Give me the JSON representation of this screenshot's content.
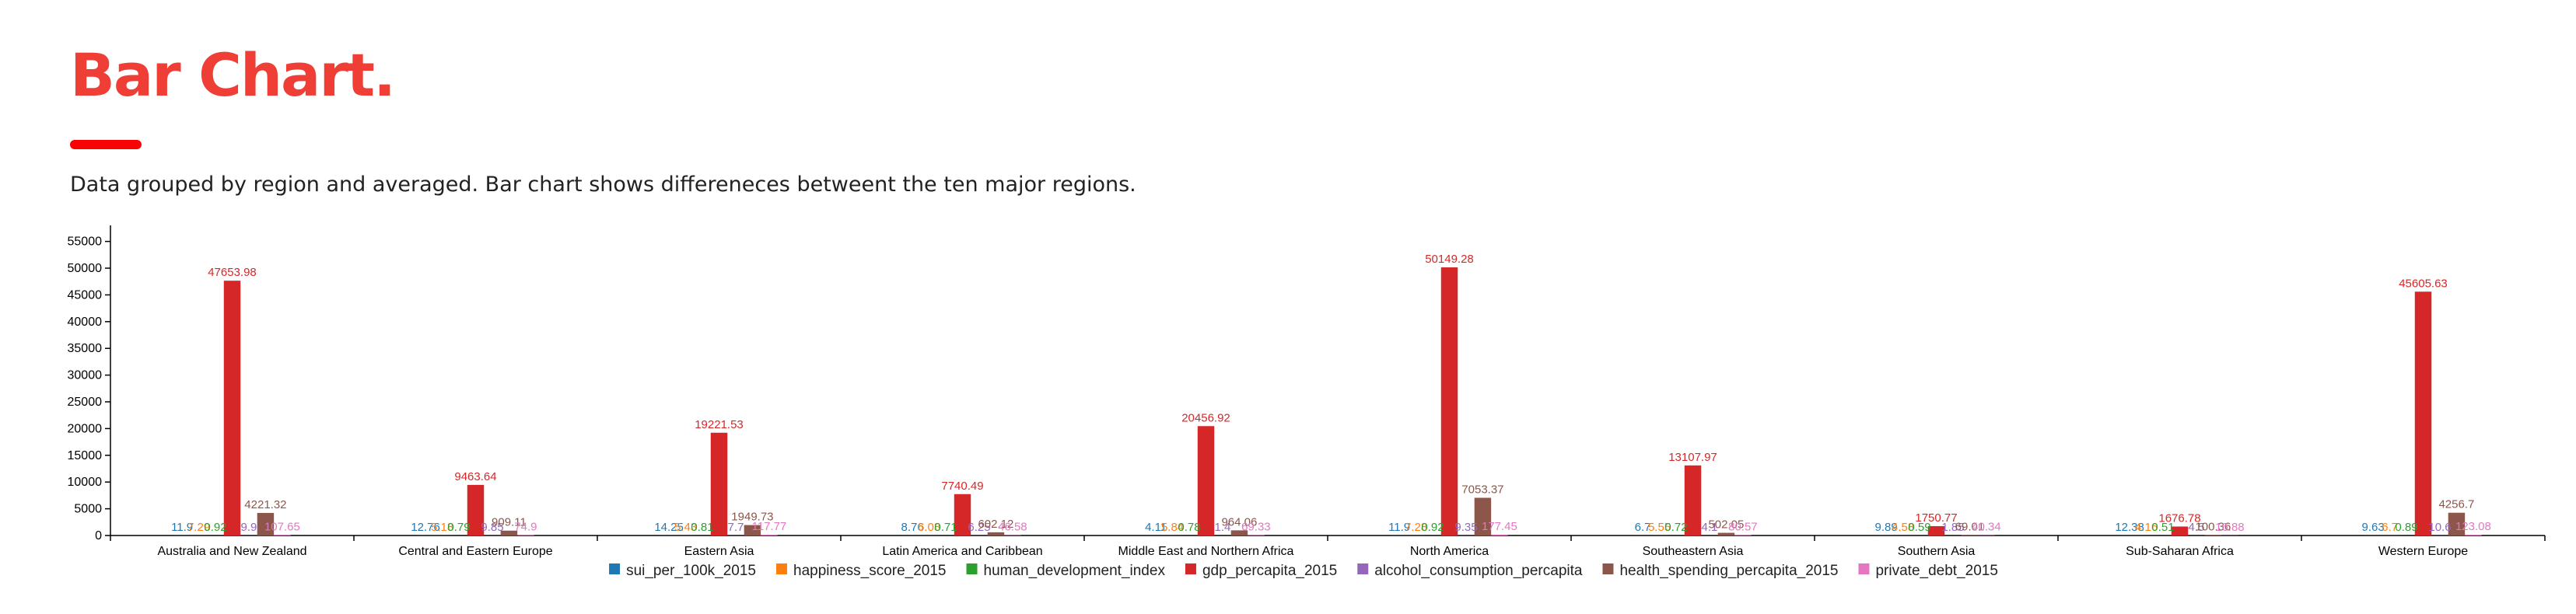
{
  "header": {
    "title": "Bar Chart.",
    "subtitle": "Data grouped by region and averaged. Bar chart shows differeneces betweent the ten major regions."
  },
  "colors": {
    "title": "#ef3e36",
    "underline": "#f80404"
  },
  "chart_data": {
    "type": "bar",
    "categories": [
      "Australia and New Zealand",
      "Central and Eastern Europe",
      "Eastern Asia",
      "Latin America and Caribbean",
      "Middle East and Northern Africa",
      "North America",
      "Southeastern Asia",
      "Southern Asia",
      "Sub-Saharan Africa",
      "Western Europe"
    ],
    "series": [
      {
        "name": "sui_per_100k_2015",
        "color": "#1f77b4",
        "values": [
          11.9,
          12.76,
          14.25,
          8.76,
          4.11,
          11.9,
          6.7,
          9.89,
          12.38,
          9.63
        ]
      },
      {
        "name": "happiness_score_2015",
        "color": "#ff7f0e",
        "values": [
          7.29,
          5.18,
          5.43,
          6.08,
          5.84,
          7.28,
          5.55,
          4.58,
          4.16,
          6.7
        ]
      },
      {
        "name": "human_development_index",
        "color": "#2ca02c",
        "values": [
          0.92,
          0.79,
          0.81,
          0.71,
          0.78,
          0.92,
          0.72,
          0.59,
          0.51,
          0.89
        ]
      },
      {
        "name": "gdp_percapita_2015",
        "color": "#d62728",
        "values": [
          47653.98,
          9463.64,
          19221.53,
          7740.49,
          20456.92,
          50149.28,
          13107.97,
          1750.77,
          1676.78,
          45605.63
        ]
      },
      {
        "name": "alcohol_consumption_percapita",
        "color": "#9467bd",
        "values": [
          9.9,
          9.85,
          7.7,
          6.25,
          1.4,
          9.35,
          4.1,
          1.85,
          4.5,
          10.6
        ]
      },
      {
        "name": "health_spending_percapita_2015",
        "color": "#8c564b",
        "values": [
          4221.32,
          909.11,
          1949.73,
          602.12,
          964.06,
          7053.37,
          502.05,
          69.01,
          100.36,
          4256.7
        ]
      },
      {
        "name": "private_debt_2015",
        "color": "#e377c2",
        "values": [
          107.65,
          74.9,
          117.77,
          46.58,
          69.33,
          177.45,
          80.57,
          40.34,
          16.88,
          123.08
        ]
      }
    ],
    "ylim": [
      0,
      58000
    ],
    "yticks": [
      0,
      5000,
      10000,
      15000,
      20000,
      25000,
      30000,
      35000,
      40000,
      45000,
      50000,
      55000
    ],
    "grid": false,
    "legend": "bottom"
  }
}
